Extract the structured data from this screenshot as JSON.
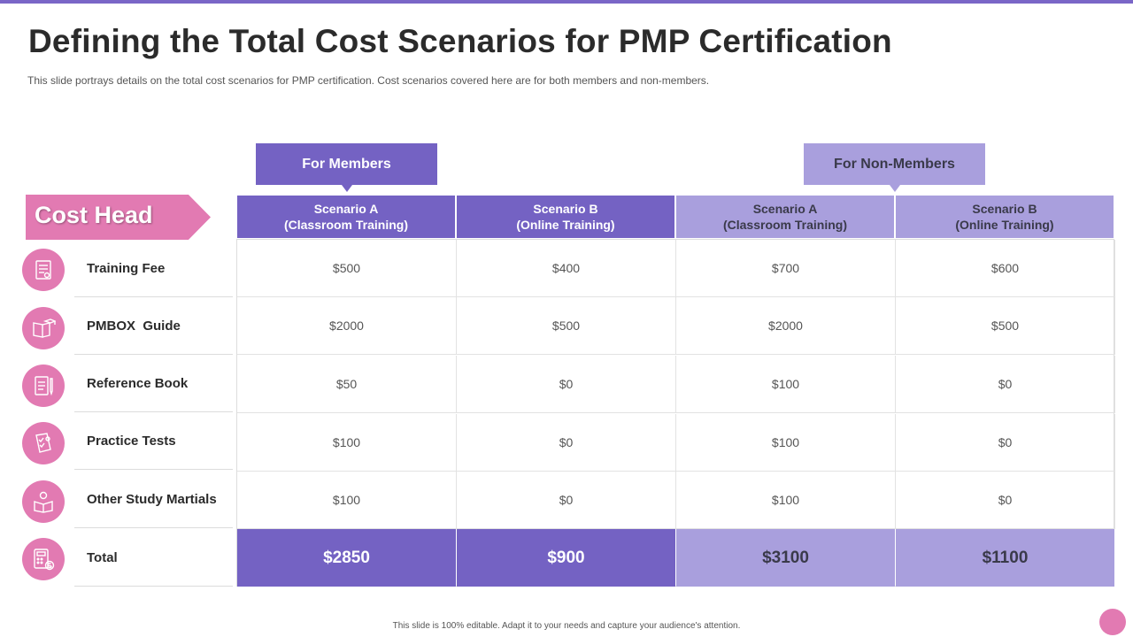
{
  "title": "Defining the Total Cost Scenarios for PMP Certification",
  "subtitle": "This slide portrays details on the total cost scenarios for PMP certification. Cost scenarios covered here are for both members and non-members.",
  "groups": {
    "members": "For Members",
    "non_members": "For Non-Members"
  },
  "cost_head": "Cost Head",
  "columns": [
    {
      "line1": "Scenario A",
      "line2": "(Classroom Training)"
    },
    {
      "line1": "Scenario B",
      "line2": "(Online Training)"
    },
    {
      "line1": "Scenario A",
      "line2": "(Classroom Training)"
    },
    {
      "line1": "Scenario B",
      "line2": "(Online Training)"
    }
  ],
  "rows": [
    {
      "label": "Training Fee",
      "icon": "certificate-icon",
      "values": [
        "$500",
        "$400",
        "$700",
        "$600"
      ]
    },
    {
      "label": "PMBOX  Guide",
      "icon": "book-graduation-icon",
      "values": [
        "$2000",
        "$500",
        "$2000",
        "$500"
      ]
    },
    {
      "label": "Reference Book",
      "icon": "notebook-pen-icon",
      "values": [
        "$50",
        "$0",
        "$100",
        "$0"
      ]
    },
    {
      "label": "Practice Tests",
      "icon": "test-sheet-icon",
      "values": [
        "$100",
        "$0",
        "$100",
        "$0"
      ]
    },
    {
      "label": "Other Study Martials",
      "icon": "student-reading-icon",
      "values": [
        "$100",
        "$0",
        "$100",
        "$0"
      ]
    }
  ],
  "total": {
    "label": "Total",
    "icon": "calculator-dollar-icon",
    "values": [
      "$2850",
      "$900",
      "$3100",
      "$1100"
    ]
  },
  "footer": "This slide is 100% editable. Adapt it to your needs and capture your audience's attention.",
  "colors": {
    "members": "#7462c3",
    "non_members": "#a99fdd",
    "accent_pink": "#e27ab2",
    "top_bar": "#7a66c7"
  }
}
